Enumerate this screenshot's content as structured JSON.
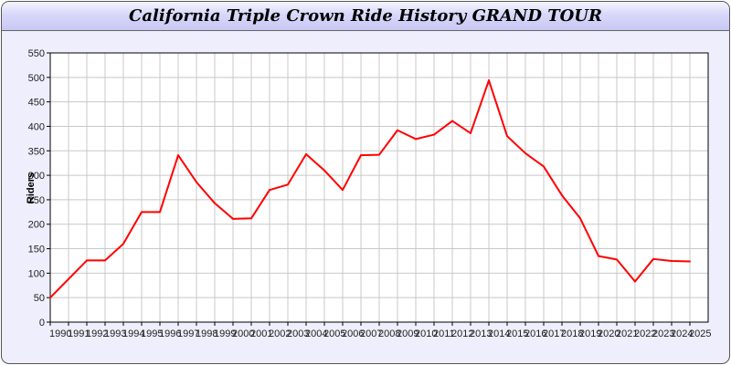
{
  "chart_data": {
    "type": "line",
    "title": "California Triple Crown Ride History GRAND TOUR",
    "xlabel": "",
    "ylabel": "Riders",
    "ylim": [
      0,
      550
    ],
    "yticks": [
      0,
      50,
      100,
      150,
      200,
      250,
      300,
      350,
      400,
      450,
      500,
      550
    ],
    "grid": true,
    "x": [
      1990,
      1991,
      1992,
      1993,
      1994,
      1995,
      1996,
      1997,
      1998,
      1999,
      2000,
      2001,
      2002,
      2003,
      2004,
      2005,
      2006,
      2007,
      2008,
      2009,
      2010,
      2011,
      2012,
      2013,
      2014,
      2015,
      2016,
      2017,
      2018,
      2019,
      2020,
      2021,
      2022,
      2023,
      2024,
      2025
    ],
    "series": [
      {
        "color": "#ff0000",
        "values": [
          50,
          88,
          126,
          126,
          160,
          225,
          225,
          341,
          286,
          243,
          211,
          212,
          270,
          281,
          343,
          310,
          270,
          341,
          342,
          392,
          374,
          383,
          411,
          386,
          494,
          380,
          345,
          318,
          259,
          212,
          135,
          128,
          83,
          129,
          125,
          124
        ]
      }
    ]
  }
}
